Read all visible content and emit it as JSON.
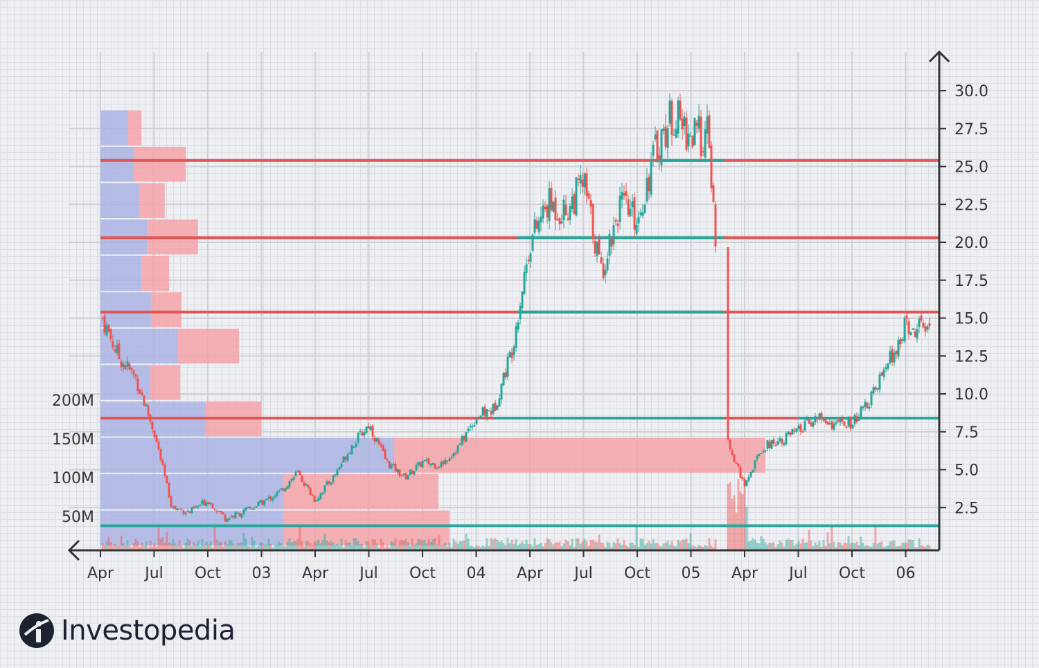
{
  "brand": {
    "name": "Investopedia"
  },
  "colors": {
    "up": "#26a69a",
    "down": "#ef5350",
    "level_line": "#e05555",
    "profile_buy": "#aab4e3",
    "profile_sell": "#f4a3a8",
    "axis": "#333333",
    "grid": "#cfd1d6"
  },
  "chart_data": {
    "type": "candlestick",
    "title": "",
    "xlabel": "",
    "ylabel": "",
    "x_ticks": [
      "Apr",
      "Jul",
      "Oct",
      "03",
      "Apr",
      "Jul",
      "Oct",
      "04",
      "Apr",
      "Jul",
      "Oct",
      "05",
      "Apr",
      "Jul",
      "Oct",
      "06"
    ],
    "x_tick_dates": [
      "2002-04",
      "2002-07",
      "2002-10",
      "2003-01",
      "2003-04",
      "2003-07",
      "2003-10",
      "2004-01",
      "2004-04",
      "2004-07",
      "2004-10",
      "2005-01",
      "2005-04",
      "2005-07",
      "2005-10",
      "2006-01"
    ],
    "y_ticks": [
      "2.5",
      "5.0",
      "7.5",
      "10.0",
      "12.5",
      "15.0",
      "17.5",
      "20.0",
      "22.5",
      "25.0",
      "27.5",
      "30.0"
    ],
    "ylim": [
      0,
      31.5
    ],
    "volume_ticks": [
      "50M",
      "100M",
      "150M",
      "200M"
    ],
    "price_path": [
      [
        "2002-04",
        15.3
      ],
      [
        "2002-05",
        12.5
      ],
      [
        "2002-06",
        11.0
      ],
      [
        "2002-07",
        7.5
      ],
      [
        "2002-08",
        2.5
      ],
      [
        "2002-09",
        2.2
      ],
      [
        "2002-10",
        3.0
      ],
      [
        "2002-11",
        1.8
      ],
      [
        "2002-12",
        2.2
      ],
      [
        "2003-01",
        2.8
      ],
      [
        "2003-02",
        3.5
      ],
      [
        "2003-03",
        4.8
      ],
      [
        "2003-04",
        3.0
      ],
      [
        "2003-05",
        4.5
      ],
      [
        "2003-06",
        6.5
      ],
      [
        "2003-07",
        8.0
      ],
      [
        "2003-08",
        5.5
      ],
      [
        "2003-09",
        4.5
      ],
      [
        "2003-10",
        5.5
      ],
      [
        "2003-11",
        5.3
      ],
      [
        "2003-12",
        6.5
      ],
      [
        "2004-01",
        8.5
      ],
      [
        "2004-02",
        9.0
      ],
      [
        "2004-03",
        13.0
      ],
      [
        "2004-04",
        20.0
      ],
      [
        "2004-05",
        22.5
      ],
      [
        "2004-06",
        22.0
      ],
      [
        "2004-07",
        24.0
      ],
      [
        "2004-08",
        18.0
      ],
      [
        "2004-09",
        22.5
      ],
      [
        "2004-10",
        21.5
      ],
      [
        "2004-11",
        26.0
      ],
      [
        "2004-12",
        28.5
      ],
      [
        "2005-01",
        27.0
      ],
      [
        "2005-02",
        27.0
      ],
      [
        "2005-03",
        7.0
      ],
      [
        "2005-04",
        4.0
      ],
      [
        "2005-05",
        6.5
      ],
      [
        "2005-06",
        7.0
      ],
      [
        "2005-07",
        7.5
      ],
      [
        "2005-08",
        8.5
      ],
      [
        "2005-09",
        8.0
      ],
      [
        "2005-10",
        8.0
      ],
      [
        "2005-11",
        9.5
      ],
      [
        "2005-12",
        12.0
      ],
      [
        "2006-01",
        14.5
      ],
      [
        "2006-02",
        14.2
      ]
    ],
    "support_resistance_levels": [
      1.3,
      8.4,
      15.4,
      20.3,
      25.4
    ],
    "volume_profile_bins": [
      {
        "price_low": 0,
        "price_high": 2.3,
        "buy": 165,
        "sell": 150
      },
      {
        "price_low": 2.4,
        "price_high": 4.7,
        "buy": 165,
        "sell": 140
      },
      {
        "price_low": 4.8,
        "price_high": 7.1,
        "buy": 265,
        "sell": 335
      },
      {
        "price_low": 7.2,
        "price_high": 9.5,
        "buy": 95,
        "sell": 50
      },
      {
        "price_low": 9.6,
        "price_high": 11.9,
        "buy": 45,
        "sell": 27
      },
      {
        "price_low": 12.0,
        "price_high": 14.3,
        "buy": 70,
        "sell": 55
      },
      {
        "price_low": 14.4,
        "price_high": 16.7,
        "buy": 46,
        "sell": 27
      },
      {
        "price_low": 16.8,
        "price_high": 19.1,
        "buy": 37,
        "sell": 25
      },
      {
        "price_low": 19.2,
        "price_high": 21.5,
        "buy": 42,
        "sell": 46
      },
      {
        "price_low": 21.6,
        "price_high": 23.9,
        "buy": 35,
        "sell": 23
      },
      {
        "price_low": 24.0,
        "price_high": 26.3,
        "buy": 30,
        "sell": 47
      },
      {
        "price_low": 26.4,
        "price_high": 28.7,
        "buy": 25,
        "sell": 12
      }
    ]
  }
}
